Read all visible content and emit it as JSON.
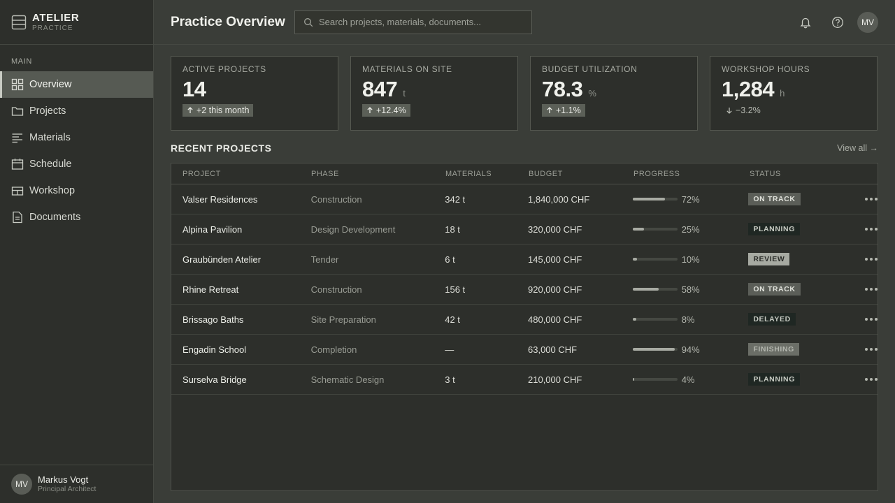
{
  "brand": {
    "title": "ATELIER",
    "subtitle": "PRACTICE"
  },
  "sidebar": {
    "section": "MAIN",
    "items": [
      {
        "label": "Overview",
        "icon": "grid-icon",
        "active": true
      },
      {
        "label": "Projects",
        "icon": "folder-icon"
      },
      {
        "label": "Materials",
        "icon": "lines-icon"
      },
      {
        "label": "Schedule",
        "icon": "calendar-icon"
      },
      {
        "label": "Workshop",
        "icon": "workshop-icon"
      },
      {
        "label": "Documents",
        "icon": "document-icon"
      }
    ]
  },
  "user": {
    "initials": "MV",
    "name": "Markus Vogt",
    "role": "Principal Architect"
  },
  "header": {
    "title": "Practice Overview",
    "search_placeholder": "Search projects, materials, documents...",
    "avatar": "MV"
  },
  "kpis": [
    {
      "label": "ACTIVE PROJECTS",
      "value": "14",
      "unit": "",
      "delta": "+2 this month",
      "direction": "up"
    },
    {
      "label": "MATERIALS ON SITE",
      "value": "847",
      "unit": "t",
      "delta": "+12.4%",
      "direction": "up"
    },
    {
      "label": "BUDGET UTILIZATION",
      "value": "78.3",
      "unit": "%",
      "delta": "+1.1%",
      "direction": "up"
    },
    {
      "label": "WORKSHOP HOURS",
      "value": "1,284",
      "unit": "h",
      "delta": "−3.2%",
      "direction": "down"
    }
  ],
  "recent": {
    "title": "RECENT PROJECTS",
    "view_all": "View all →",
    "columns": [
      "PROJECT",
      "PHASE",
      "MATERIALS",
      "BUDGET",
      "PROGRESS",
      "STATUS"
    ],
    "rows": [
      {
        "project": "Valser Residences",
        "phase": "Construction",
        "materials": "342 t",
        "budget": "1,840,000 CHF",
        "progress": 72,
        "progress_label": "72%",
        "status": "ON TRACK",
        "status_kind": "on-track"
      },
      {
        "project": "Alpina Pavilion",
        "phase": "Design Development",
        "materials": "18 t",
        "budget": "320,000 CHF",
        "progress": 25,
        "progress_label": "25%",
        "status": "PLANNING",
        "status_kind": "planning"
      },
      {
        "project": "Graubünden Atelier",
        "phase": "Tender",
        "materials": "6 t",
        "budget": "145,000 CHF",
        "progress": 10,
        "progress_label": "10%",
        "status": "REVIEW",
        "status_kind": "review"
      },
      {
        "project": "Rhine Retreat",
        "phase": "Construction",
        "materials": "156 t",
        "budget": "920,000 CHF",
        "progress": 58,
        "progress_label": "58%",
        "status": "ON TRACK",
        "status_kind": "on-track"
      },
      {
        "project": "Brissago Baths",
        "phase": "Site Preparation",
        "materials": "42 t",
        "budget": "480,000 CHF",
        "progress": 8,
        "progress_label": "8%",
        "status": "DELAYED",
        "status_kind": "delayed"
      },
      {
        "project": "Engadin School",
        "phase": "Completion",
        "materials": "—",
        "budget": "63,000 CHF",
        "progress": 94,
        "progress_label": "94%",
        "status": "FINISHING",
        "status_kind": "finishing"
      },
      {
        "project": "Surselva Bridge",
        "phase": "Schematic Design",
        "materials": "3 t",
        "budget": "210,000 CHF",
        "progress": 4,
        "progress_label": "4%",
        "status": "PLANNING",
        "status_kind": "planning"
      }
    ]
  }
}
